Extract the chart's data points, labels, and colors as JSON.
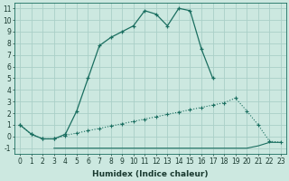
{
  "xlabel": "Humidex (Indice chaleur)",
  "bg_color": "#cce8e0",
  "grid_color": "#aacfc8",
  "line_color": "#1a6e60",
  "xlim": [
    -0.5,
    23.5
  ],
  "ylim": [
    -1.5,
    11.5
  ],
  "xticks": [
    0,
    1,
    2,
    3,
    4,
    5,
    6,
    7,
    8,
    9,
    10,
    11,
    12,
    13,
    14,
    15,
    16,
    17,
    18,
    19,
    20,
    21,
    22,
    23
  ],
  "yticks": [
    -1,
    0,
    1,
    2,
    3,
    4,
    5,
    6,
    7,
    8,
    9,
    10,
    11
  ],
  "line_main_x": [
    0,
    1,
    2,
    3,
    4,
    5,
    6,
    7,
    8,
    9,
    10,
    11,
    12,
    13,
    14,
    15,
    16,
    17,
    18,
    19,
    20,
    21,
    22,
    23
  ],
  "line_main_y": [
    1.0,
    0.2,
    -0.2,
    -0.2,
    0.2,
    2.2,
    5.0,
    7.8,
    8.5,
    9.0,
    9.5,
    10.8,
    10.5,
    9.5,
    11.0,
    10.8,
    7.5,
    5.0,
    null,
    null,
    null,
    null,
    null,
    null
  ],
  "line_mid_x": [
    0,
    1,
    2,
    3,
    4,
    5,
    6,
    7,
    8,
    9,
    10,
    11,
    12,
    13,
    14,
    15,
    16,
    17,
    18,
    19,
    20,
    21,
    22,
    23
  ],
  "line_mid_y": [
    1.0,
    0.2,
    -0.2,
    -0.2,
    0.1,
    0.3,
    0.5,
    0.7,
    0.9,
    1.1,
    1.3,
    1.5,
    1.7,
    1.9,
    2.1,
    2.3,
    2.5,
    2.7,
    2.9,
    3.3,
    2.2,
    1.0,
    -0.4,
    -0.5
  ],
  "line_bot_x": [
    0,
    1,
    2,
    3,
    4,
    5,
    6,
    7,
    8,
    9,
    10,
    11,
    12,
    13,
    14,
    15,
    16,
    17,
    18,
    19,
    20,
    21,
    22,
    23
  ],
  "line_bot_y": [
    null,
    null,
    null,
    -1.0,
    -1.0,
    -1.0,
    -1.0,
    -1.0,
    -1.0,
    -1.0,
    -1.0,
    -1.0,
    -1.0,
    -1.0,
    -1.0,
    -1.0,
    -1.0,
    -1.0,
    -1.0,
    -1.0,
    -1.0,
    -0.8,
    -0.5,
    -0.5
  ],
  "xlabel_fontsize": 6.5,
  "tick_fontsize": 5.5
}
